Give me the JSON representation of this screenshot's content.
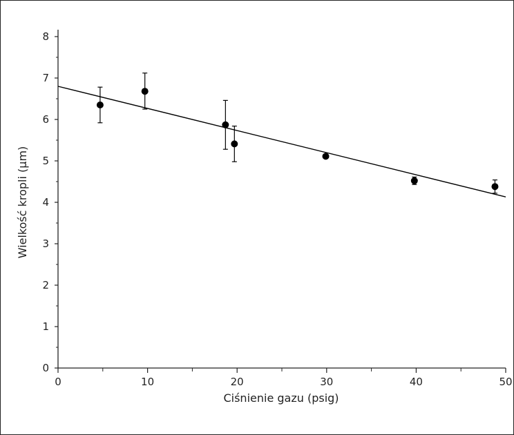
{
  "chart_data": {
    "type": "scatter",
    "xlabel": "Ciśnienie gazu (psig)",
    "ylabel": "Wielkość kropli (µm)",
    "xlim": [
      0,
      50
    ],
    "ylim": [
      0,
      8
    ],
    "x_major_ticks": [
      0,
      10,
      20,
      30,
      40,
      50
    ],
    "x_minor_ticks": [
      5,
      15,
      25,
      35,
      45
    ],
    "y_major_ticks": [
      0,
      1,
      2,
      3,
      4,
      5,
      6,
      7,
      8
    ],
    "x_tick_labels": [
      "0",
      "10",
      "20",
      "30",
      "40",
      "50"
    ],
    "y_tick_labels": [
      "0",
      "1",
      "2",
      "3",
      "4",
      "5",
      "6",
      "7",
      "8"
    ],
    "grid": false,
    "legend": "none",
    "series": [
      {
        "points": [
          {
            "x": 4.7,
            "y": 6.35,
            "err_low": 5.92,
            "err_high": 6.78
          },
          {
            "x": 9.7,
            "y": 6.68,
            "err_low": 6.25,
            "err_high": 7.12
          },
          {
            "x": 18.7,
            "y": 5.87,
            "err_low": 5.28,
            "err_high": 6.46
          },
          {
            "x": 19.7,
            "y": 5.41,
            "err_low": 4.98,
            "err_high": 5.84
          },
          {
            "x": 29.9,
            "y": 5.11,
            "err_low": 5.11,
            "err_high": 5.11
          },
          {
            "x": 39.8,
            "y": 4.52,
            "err_low": 4.43,
            "err_high": 4.61
          },
          {
            "x": 48.8,
            "y": 4.38,
            "err_low": 4.22,
            "err_high": 4.54
          }
        ]
      }
    ],
    "trendline": {
      "x_start": 0,
      "y_start": 6.8,
      "x_end": 50,
      "y_end": 4.13
    },
    "colors": {
      "marker": "#000000",
      "line": "#000000",
      "axis": "#222222"
    }
  }
}
